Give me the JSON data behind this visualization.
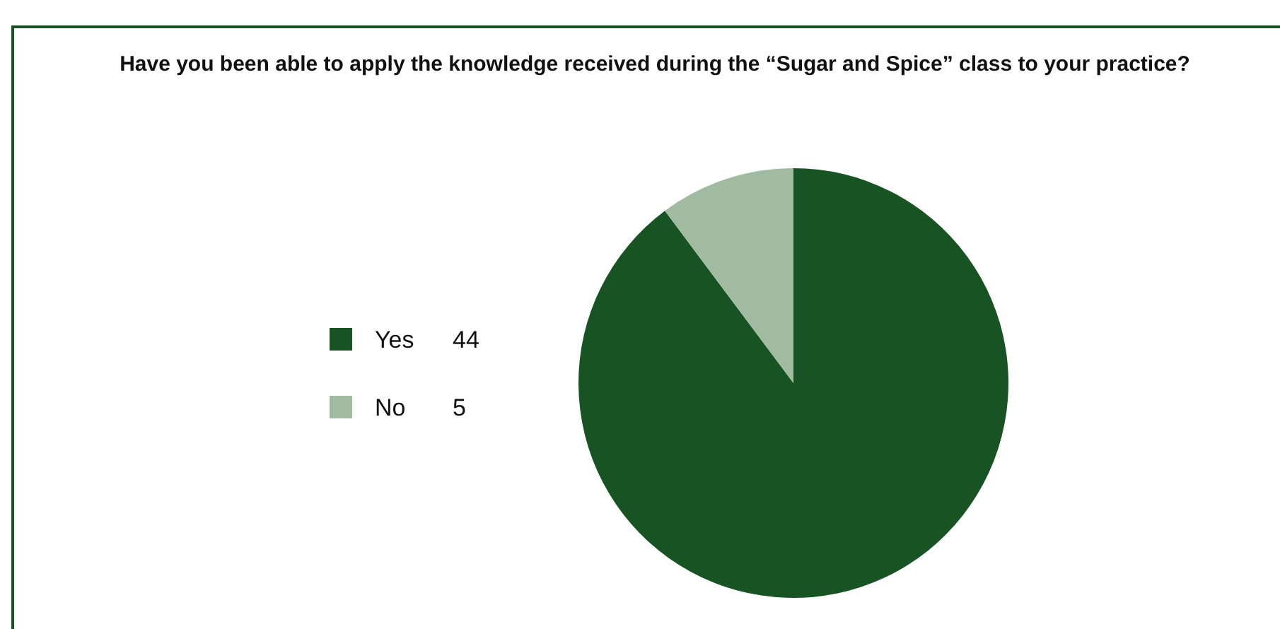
{
  "chart_data": {
    "type": "pie",
    "title": "Have you been able to apply the knowledge received during the “Sugar and Spice” class to your practice?",
    "categories": [
      "Yes",
      "No"
    ],
    "values": [
      44,
      5
    ],
    "colors": [
      "#185324",
      "#a1bba3"
    ],
    "legend": "left",
    "data_labels": true
  }
}
